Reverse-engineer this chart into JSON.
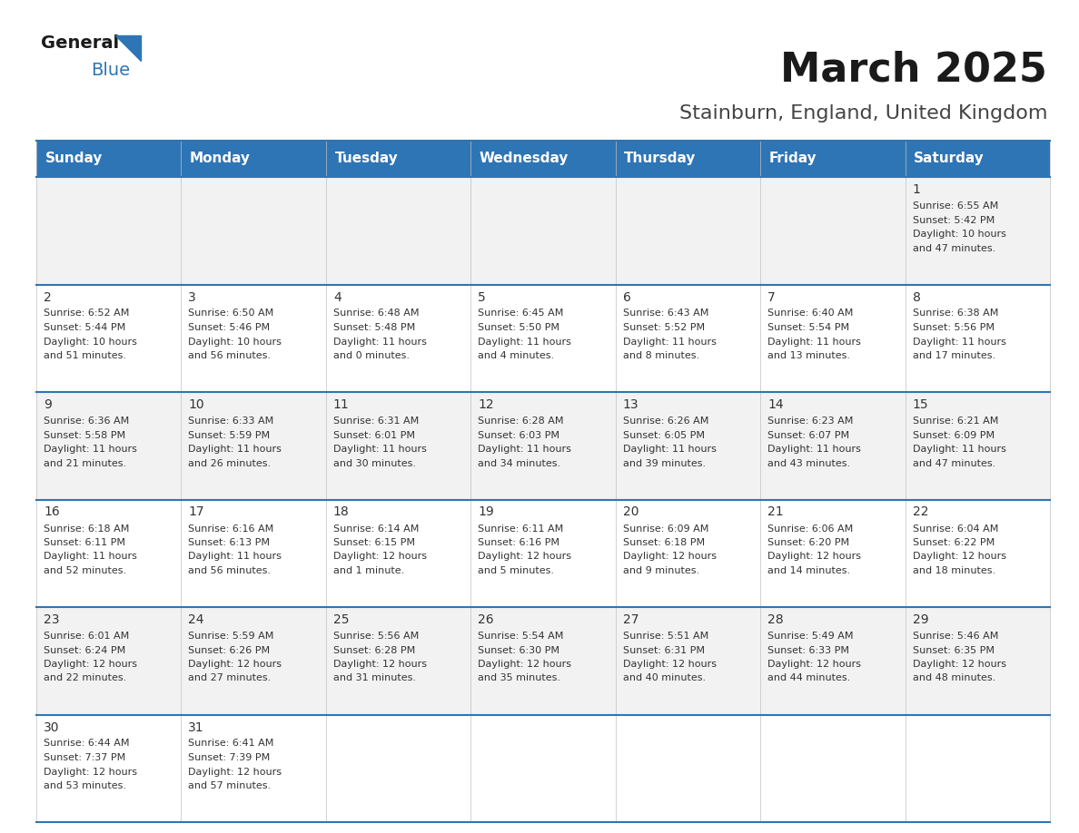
{
  "title": "March 2025",
  "subtitle": "Stainburn, England, United Kingdom",
  "days_of_week": [
    "Sunday",
    "Monday",
    "Tuesday",
    "Wednesday",
    "Thursday",
    "Friday",
    "Saturday"
  ],
  "header_bg": "#2e75b6",
  "header_text": "#ffffff",
  "row_bg_odd": "#f2f2f2",
  "row_bg_even": "#ffffff",
  "cell_text": "#333333",
  "grid_line": "#2e75b6",
  "title_fontsize": 32,
  "subtitle_fontsize": 16,
  "header_fontsize": 11,
  "day_num_fontsize": 10,
  "cell_fontsize": 8,
  "calendar_data": [
    [
      null,
      null,
      null,
      null,
      null,
      null,
      {
        "day": "1",
        "sunrise": "6:55 AM",
        "sunset": "5:42 PM",
        "daylight": "10 hours",
        "daylight2": "and 47 minutes."
      }
    ],
    [
      {
        "day": "2",
        "sunrise": "6:52 AM",
        "sunset": "5:44 PM",
        "daylight": "10 hours",
        "daylight2": "and 51 minutes."
      },
      {
        "day": "3",
        "sunrise": "6:50 AM",
        "sunset": "5:46 PM",
        "daylight": "10 hours",
        "daylight2": "and 56 minutes."
      },
      {
        "day": "4",
        "sunrise": "6:48 AM",
        "sunset": "5:48 PM",
        "daylight": "11 hours",
        "daylight2": "and 0 minutes."
      },
      {
        "day": "5",
        "sunrise": "6:45 AM",
        "sunset": "5:50 PM",
        "daylight": "11 hours",
        "daylight2": "and 4 minutes."
      },
      {
        "day": "6",
        "sunrise": "6:43 AM",
        "sunset": "5:52 PM",
        "daylight": "11 hours",
        "daylight2": "and 8 minutes."
      },
      {
        "day": "7",
        "sunrise": "6:40 AM",
        "sunset": "5:54 PM",
        "daylight": "11 hours",
        "daylight2": "and 13 minutes."
      },
      {
        "day": "8",
        "sunrise": "6:38 AM",
        "sunset": "5:56 PM",
        "daylight": "11 hours",
        "daylight2": "and 17 minutes."
      }
    ],
    [
      {
        "day": "9",
        "sunrise": "6:36 AM",
        "sunset": "5:58 PM",
        "daylight": "11 hours",
        "daylight2": "and 21 minutes."
      },
      {
        "day": "10",
        "sunrise": "6:33 AM",
        "sunset": "5:59 PM",
        "daylight": "11 hours",
        "daylight2": "and 26 minutes."
      },
      {
        "day": "11",
        "sunrise": "6:31 AM",
        "sunset": "6:01 PM",
        "daylight": "11 hours",
        "daylight2": "and 30 minutes."
      },
      {
        "day": "12",
        "sunrise": "6:28 AM",
        "sunset": "6:03 PM",
        "daylight": "11 hours",
        "daylight2": "and 34 minutes."
      },
      {
        "day": "13",
        "sunrise": "6:26 AM",
        "sunset": "6:05 PM",
        "daylight": "11 hours",
        "daylight2": "and 39 minutes."
      },
      {
        "day": "14",
        "sunrise": "6:23 AM",
        "sunset": "6:07 PM",
        "daylight": "11 hours",
        "daylight2": "and 43 minutes."
      },
      {
        "day": "15",
        "sunrise": "6:21 AM",
        "sunset": "6:09 PM",
        "daylight": "11 hours",
        "daylight2": "and 47 minutes."
      }
    ],
    [
      {
        "day": "16",
        "sunrise": "6:18 AM",
        "sunset": "6:11 PM",
        "daylight": "11 hours",
        "daylight2": "and 52 minutes."
      },
      {
        "day": "17",
        "sunrise": "6:16 AM",
        "sunset": "6:13 PM",
        "daylight": "11 hours",
        "daylight2": "and 56 minutes."
      },
      {
        "day": "18",
        "sunrise": "6:14 AM",
        "sunset": "6:15 PM",
        "daylight": "12 hours",
        "daylight2": "and 1 minute."
      },
      {
        "day": "19",
        "sunrise": "6:11 AM",
        "sunset": "6:16 PM",
        "daylight": "12 hours",
        "daylight2": "and 5 minutes."
      },
      {
        "day": "20",
        "sunrise": "6:09 AM",
        "sunset": "6:18 PM",
        "daylight": "12 hours",
        "daylight2": "and 9 minutes."
      },
      {
        "day": "21",
        "sunrise": "6:06 AM",
        "sunset": "6:20 PM",
        "daylight": "12 hours",
        "daylight2": "and 14 minutes."
      },
      {
        "day": "22",
        "sunrise": "6:04 AM",
        "sunset": "6:22 PM",
        "daylight": "12 hours",
        "daylight2": "and 18 minutes."
      }
    ],
    [
      {
        "day": "23",
        "sunrise": "6:01 AM",
        "sunset": "6:24 PM",
        "daylight": "12 hours",
        "daylight2": "and 22 minutes."
      },
      {
        "day": "24",
        "sunrise": "5:59 AM",
        "sunset": "6:26 PM",
        "daylight": "12 hours",
        "daylight2": "and 27 minutes."
      },
      {
        "day": "25",
        "sunrise": "5:56 AM",
        "sunset": "6:28 PM",
        "daylight": "12 hours",
        "daylight2": "and 31 minutes."
      },
      {
        "day": "26",
        "sunrise": "5:54 AM",
        "sunset": "6:30 PM",
        "daylight": "12 hours",
        "daylight2": "and 35 minutes."
      },
      {
        "day": "27",
        "sunrise": "5:51 AM",
        "sunset": "6:31 PM",
        "daylight": "12 hours",
        "daylight2": "and 40 minutes."
      },
      {
        "day": "28",
        "sunrise": "5:49 AM",
        "sunset": "6:33 PM",
        "daylight": "12 hours",
        "daylight2": "and 44 minutes."
      },
      {
        "day": "29",
        "sunrise": "5:46 AM",
        "sunset": "6:35 PM",
        "daylight": "12 hours",
        "daylight2": "and 48 minutes."
      }
    ],
    [
      {
        "day": "30",
        "sunrise": "6:44 AM",
        "sunset": "7:37 PM",
        "daylight": "12 hours",
        "daylight2": "and 53 minutes."
      },
      {
        "day": "31",
        "sunrise": "6:41 AM",
        "sunset": "7:39 PM",
        "daylight": "12 hours",
        "daylight2": "and 57 minutes."
      },
      null,
      null,
      null,
      null,
      null
    ]
  ]
}
